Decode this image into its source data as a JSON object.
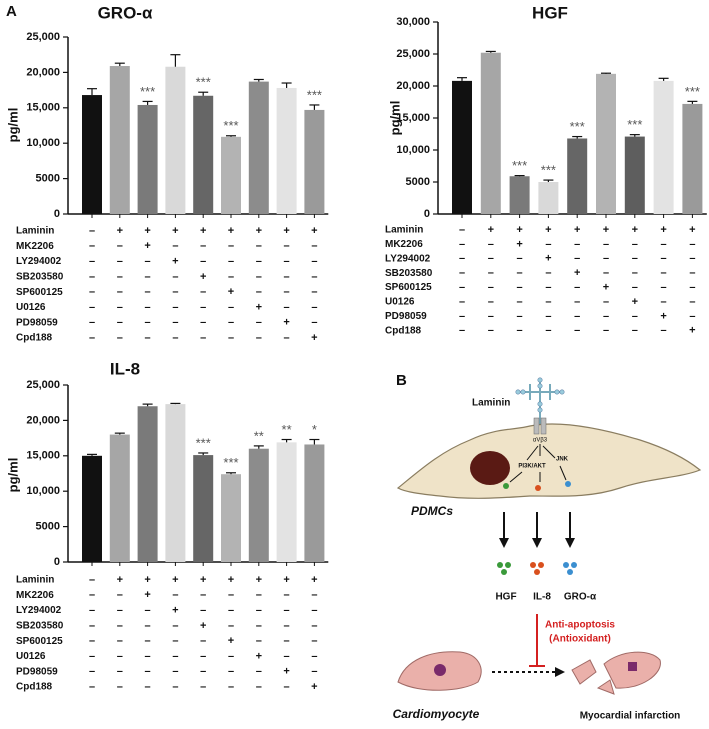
{
  "panel_labels": [
    "A",
    "B"
  ],
  "chart_data": [
    {
      "type": "bar",
      "title": "GRO-α",
      "y_label": "pg/ml",
      "categories": [
        null,
        null,
        null,
        null,
        null,
        null,
        null,
        null,
        null
      ],
      "values": [
        16800,
        20900,
        15400,
        20800,
        16700,
        10900,
        18700,
        17800,
        14700
      ],
      "errors": [
        900,
        400,
        500,
        1700,
        500,
        150,
        300,
        700,
        700
      ],
      "annotations": [
        null,
        null,
        "***",
        null,
        "***",
        "***",
        null,
        null,
        "***"
      ],
      "colors": [
        "#111111",
        "#a6a6a6",
        "#7a7a7a",
        "#d9d9d9",
        "#666666",
        "#b3b3b3",
        "#8c8c8c",
        "#e3e3e3",
        "#9a9a9a"
      ],
      "ylim": [
        0,
        25000
      ],
      "yticks": [
        0,
        5000,
        {
          "value": 10000,
          "label": "10,000"
        },
        {
          "value": 15000,
          "label": "15,000"
        },
        {
          "value": 20000,
          "label": "20,000"
        },
        {
          "value": 25000,
          "label": "25,000"
        }
      ],
      "treatments": [
        {
          "name": "Laminin",
          "signs": [
            "–",
            "+",
            "+",
            "+",
            "+",
            "+",
            "+",
            "+",
            "+"
          ]
        },
        {
          "name": "MK2206",
          "signs": [
            "–",
            "–",
            "+",
            "–",
            "–",
            "–",
            "–",
            "–",
            "–"
          ]
        },
        {
          "name": "LY294002",
          "signs": [
            "–",
            "–",
            "–",
            "+",
            "–",
            "–",
            "–",
            "–",
            "–"
          ]
        },
        {
          "name": "SB203580",
          "signs": [
            "–",
            "–",
            "–",
            "–",
            "+",
            "–",
            "–",
            "–",
            "–"
          ]
        },
        {
          "name": "SP600125",
          "signs": [
            "–",
            "–",
            "–",
            "–",
            "–",
            "+",
            "–",
            "–",
            "–"
          ]
        },
        {
          "name": "U0126",
          "signs": [
            "–",
            "–",
            "–",
            "–",
            "–",
            "–",
            "+",
            "–",
            "–"
          ]
        },
        {
          "name": "PD98059",
          "signs": [
            "–",
            "–",
            "–",
            "–",
            "–",
            "–",
            "–",
            "+",
            "–"
          ]
        },
        {
          "name": "Cpd188",
          "signs": [
            "–",
            "–",
            "–",
            "–",
            "–",
            "–",
            "–",
            "–",
            "+"
          ]
        }
      ]
    },
    {
      "type": "bar",
      "title": "HGF",
      "y_label": "pg/ml",
      "categories": [
        null,
        null,
        null,
        null,
        null,
        null,
        null,
        null,
        null
      ],
      "values": [
        20800,
        25200,
        5900,
        5000,
        11800,
        21900,
        12100,
        20800,
        17200
      ],
      "errors": [
        500,
        200,
        100,
        300,
        300,
        100,
        300,
        400,
        400
      ],
      "annotations": [
        null,
        null,
        "***",
        "***",
        "***",
        null,
        "***",
        null,
        "***"
      ],
      "colors": [
        "#111111",
        "#a6a6a6",
        "#7a7a7a",
        "#d9d9d9",
        "#666666",
        "#b3b3b3",
        "#5e5e5e",
        "#e3e3e3",
        "#9a9a9a"
      ],
      "ylim": [
        0,
        30000
      ],
      "yticks": [
        0,
        5000,
        {
          "value": 10000,
          "label": "10,000"
        },
        {
          "value": 15000,
          "label": "15,000"
        },
        {
          "value": 20000,
          "label": "20,000"
        },
        {
          "value": 25000,
          "label": "25,000"
        },
        {
          "value": 30000,
          "label": "30,000"
        }
      ],
      "treatments": [
        {
          "name": "Laminin",
          "signs": [
            "–",
            "+",
            "+",
            "+",
            "+",
            "+",
            "+",
            "+",
            "+"
          ]
        },
        {
          "name": "MK2206",
          "signs": [
            "–",
            "–",
            "+",
            "–",
            "–",
            "–",
            "–",
            "–",
            "–"
          ]
        },
        {
          "name": "LY294002",
          "signs": [
            "–",
            "–",
            "–",
            "+",
            "–",
            "–",
            "–",
            "–",
            "–"
          ]
        },
        {
          "name": "SB203580",
          "signs": [
            "–",
            "–",
            "–",
            "–",
            "+",
            "–",
            "–",
            "–",
            "–"
          ]
        },
        {
          "name": "SP600125",
          "signs": [
            "–",
            "–",
            "–",
            "–",
            "–",
            "+",
            "–",
            "–",
            "–"
          ]
        },
        {
          "name": "U0126",
          "signs": [
            "–",
            "–",
            "–",
            "–",
            "–",
            "–",
            "+",
            "–",
            "–"
          ]
        },
        {
          "name": "PD98059",
          "signs": [
            "–",
            "–",
            "–",
            "–",
            "–",
            "–",
            "–",
            "+",
            "–"
          ]
        },
        {
          "name": "Cpd188",
          "signs": [
            "–",
            "–",
            "–",
            "–",
            "–",
            "–",
            "–",
            "–",
            "+"
          ]
        }
      ]
    },
    {
      "type": "bar",
      "title": "IL-8",
      "y_label": "pg/ml",
      "categories": [
        null,
        null,
        null,
        null,
        null,
        null,
        null,
        null,
        null
      ],
      "values": [
        15000,
        18000,
        22000,
        22300,
        15100,
        12400,
        16000,
        16900,
        16600
      ],
      "errors": [
        200,
        200,
        300,
        100,
        300,
        200,
        400,
        400,
        700
      ],
      "annotations": [
        null,
        null,
        null,
        null,
        "***",
        "***",
        "**",
        "**",
        "*"
      ],
      "colors": [
        "#111111",
        "#a6a6a6",
        "#7a7a7a",
        "#d9d9d9",
        "#666666",
        "#b3b3b3",
        "#8c8c8c",
        "#e3e3e3",
        "#9a9a9a"
      ],
      "ylim": [
        0,
        25000
      ],
      "yticks": [
        0,
        5000,
        {
          "value": 10000,
          "label": "10,000"
        },
        {
          "value": 15000,
          "label": "15,000"
        },
        {
          "value": 20000,
          "label": "20,000"
        },
        {
          "value": 25000,
          "label": "25,000"
        }
      ],
      "treatments": [
        {
          "name": "Laminin",
          "signs": [
            "–",
            "+",
            "+",
            "+",
            "+",
            "+",
            "+",
            "+",
            "+"
          ]
        },
        {
          "name": "MK2206",
          "signs": [
            "–",
            "–",
            "+",
            "–",
            "–",
            "–",
            "–",
            "–",
            "–"
          ]
        },
        {
          "name": "LY294002",
          "signs": [
            "–",
            "–",
            "–",
            "+",
            "–",
            "–",
            "–",
            "–",
            "–"
          ]
        },
        {
          "name": "SB203580",
          "signs": [
            "–",
            "–",
            "–",
            "–",
            "+",
            "–",
            "–",
            "–",
            "–"
          ]
        },
        {
          "name": "SP600125",
          "signs": [
            "–",
            "–",
            "–",
            "–",
            "–",
            "+",
            "–",
            "–",
            "–"
          ]
        },
        {
          "name": "U0126",
          "signs": [
            "–",
            "–",
            "–",
            "–",
            "–",
            "–",
            "+",
            "–",
            "–"
          ]
        },
        {
          "name": "PD98059",
          "signs": [
            "–",
            "–",
            "–",
            "–",
            "–",
            "–",
            "–",
            "+",
            "–"
          ]
        },
        {
          "name": "Cpd188",
          "signs": [
            "–",
            "–",
            "–",
            "–",
            "–",
            "–",
            "–",
            "–",
            "+"
          ]
        }
      ]
    }
  ],
  "diagram": {
    "ligand": "Laminin",
    "receptor": "αVβ3",
    "pathways": [
      "PI3K/AKT",
      "JNK"
    ],
    "cell": "PDMCs",
    "factors": [
      "HGF",
      "IL-8",
      "GRO-α"
    ],
    "effect": [
      "Anti-apoptosis",
      "(Antioxidant)"
    ],
    "target": "Cardiomyocyte",
    "outcome": "Myocardial infarction"
  }
}
